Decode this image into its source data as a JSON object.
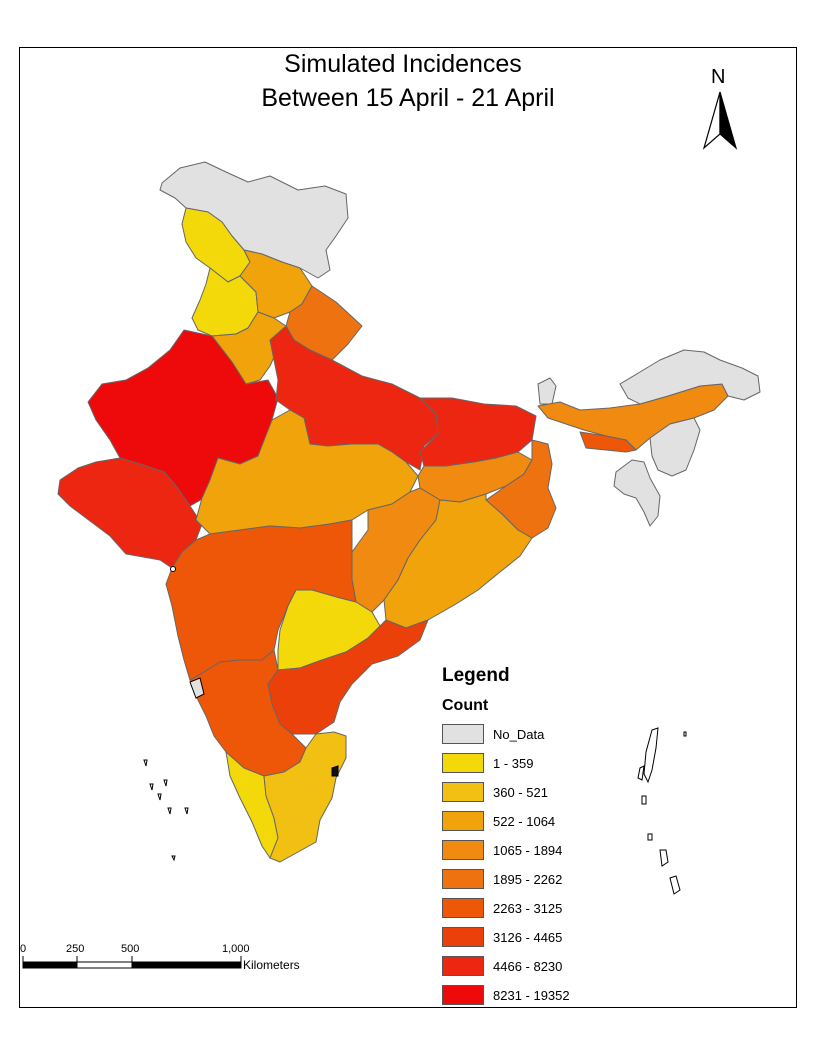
{
  "title_line1": "Simulated Incidences",
  "title_line2": "Between 15 April - 21 April",
  "north_arrow": {
    "label": "N",
    "icon": "north-arrow-icon"
  },
  "legend": {
    "title": "Legend",
    "subtitle": "Count",
    "items": [
      {
        "label": "No_Data",
        "color": "#e1e1e1"
      },
      {
        "label": "1 - 359",
        "color": "#f4d90a"
      },
      {
        "label": "360 - 521",
        "color": "#f2c012"
      },
      {
        "label": "522 - 1064",
        "color": "#f0a30b"
      },
      {
        "label": "1065 - 1894",
        "color": "#f08a10"
      },
      {
        "label": "1895 - 2262",
        "color": "#ef7210"
      },
      {
        "label": "2263 - 3125",
        "color": "#ee5708"
      },
      {
        "label": "3126 - 4465",
        "color": "#ec400b"
      },
      {
        "label": "4466 - 8230",
        "color": "#ec2610"
      },
      {
        "label": "8231 - 19352",
        "color": "#ee0a0a"
      }
    ]
  },
  "scale_bar": {
    "ticks": [
      "0",
      "250",
      "500",
      "1,000"
    ],
    "unit": "Kilometers"
  }
}
